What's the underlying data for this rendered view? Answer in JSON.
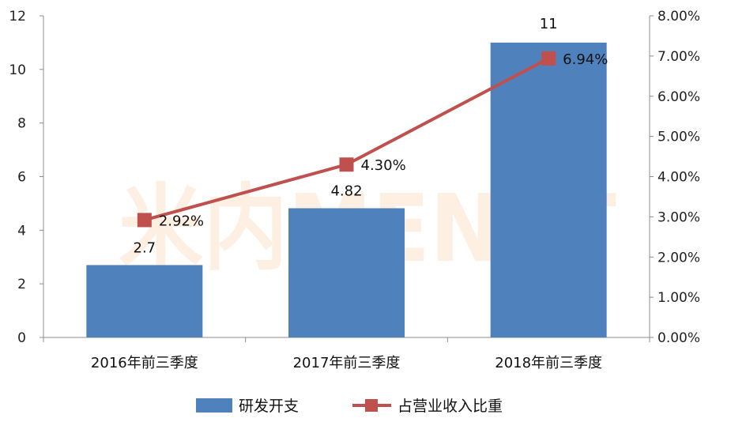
{
  "chart_data": {
    "type": "bar",
    "categories": [
      "2016年前三季度",
      "2017年前三季度",
      "2018年前三季度"
    ],
    "series": [
      {
        "name": "研发开支",
        "kind": "bar",
        "axis": "left",
        "values": [
          2.7,
          4.82,
          11
        ],
        "labels": [
          "2.7",
          "4.82",
          "11"
        ],
        "color": "#4F81BD"
      },
      {
        "name": "占营业收入比重",
        "kind": "line",
        "axis": "right",
        "values": [
          2.92,
          4.3,
          6.94
        ],
        "labels": [
          "2.92%",
          "4.30%",
          "6.94%"
        ],
        "color": "#C0504D"
      }
    ],
    "y_left": {
      "min": 0,
      "max": 12,
      "ticks": [
        "0",
        "2",
        "4",
        "6",
        "8",
        "10",
        "12"
      ]
    },
    "y_right": {
      "min": 0,
      "max": 8,
      "ticks": [
        "0.00%",
        "1.00%",
        "2.00%",
        "3.00%",
        "4.00%",
        "5.00%",
        "6.00%",
        "7.00%",
        "8.00%"
      ]
    },
    "grid": false,
    "legend": "bottom",
    "watermark": "米内MENET"
  }
}
